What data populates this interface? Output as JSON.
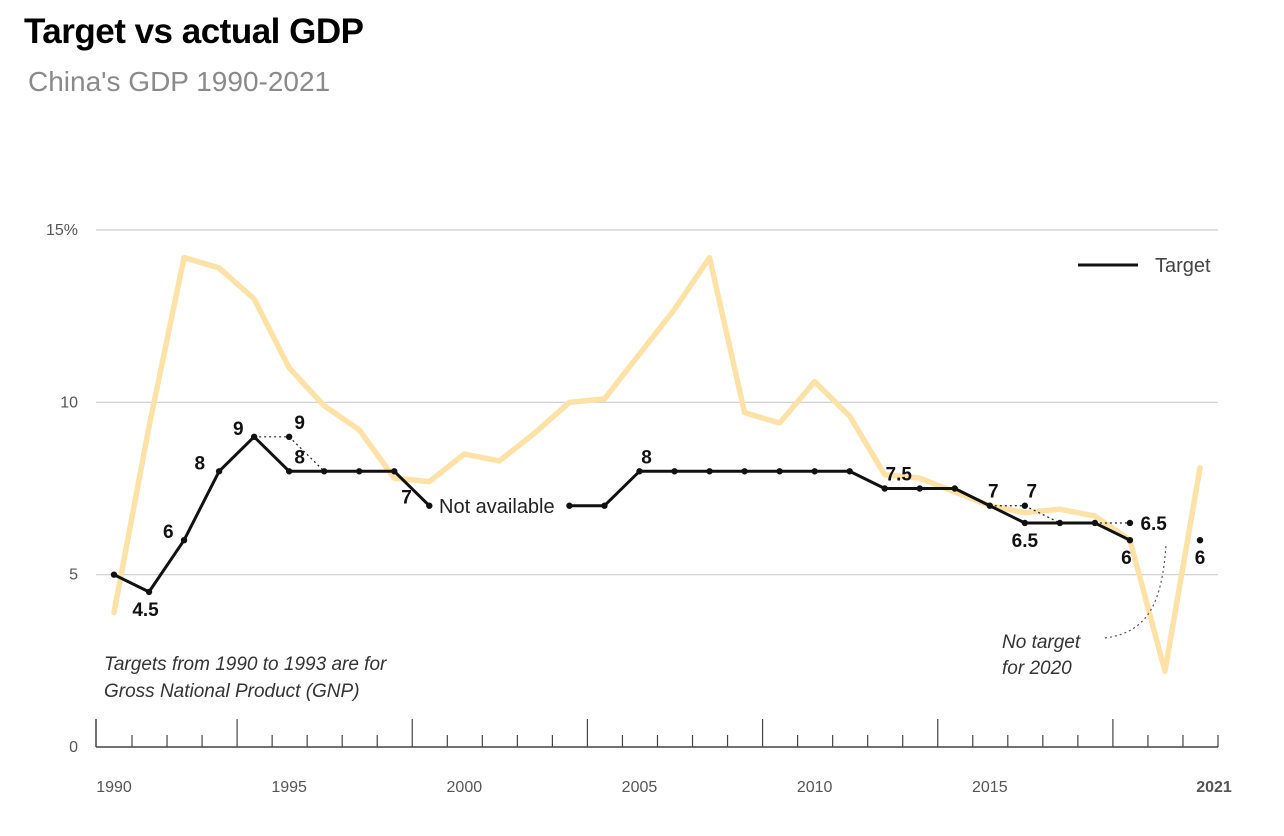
{
  "title": "Target vs actual GDP",
  "subtitle": "China's GDP 1990-2021",
  "legend": {
    "label": "Target",
    "placement": "top-right"
  },
  "notes": {
    "gnp_line1": "Targets from 1990 to 1993 are for",
    "gnp_line2": "Gross National Product (GNP)",
    "not_available": "Not available",
    "no_target_line1": "No target",
    "no_target_line2": "for 2020"
  },
  "colors": {
    "actual": "#fde2a8",
    "target": "#111111",
    "grid": "#cccccc",
    "axis": "#444444"
  },
  "chart_data": {
    "type": "line",
    "title": "Target vs actual GDP",
    "subtitle": "China's GDP 1990-2021",
    "ylim": [
      0,
      15
    ],
    "yticks": [
      0,
      5,
      10,
      15
    ],
    "ytick_labels": [
      "0",
      "5",
      "10",
      "15%"
    ],
    "xlim": [
      1990,
      2021
    ],
    "xticks": [
      1990,
      1995,
      2000,
      2005,
      2010,
      2015,
      2021
    ],
    "xtick_labels": [
      "1990",
      "1995",
      "2000",
      "2005",
      "2010",
      "2015",
      "2021"
    ],
    "grid": true,
    "series": [
      {
        "name": "",
        "color": "#fde2a8",
        "x": [
          1990,
          1991,
          1992,
          1993,
          1994,
          1995,
          1996,
          1997,
          1998,
          1999,
          2000,
          2001,
          2002,
          2003,
          2004,
          2005,
          2006,
          2007,
          2008,
          2009,
          2010,
          2011,
          2012,
          2013,
          2014,
          2015,
          2016,
          2017,
          2018,
          2019,
          2020,
          2021
        ],
        "y": [
          3.9,
          9.3,
          14.2,
          13.9,
          13.0,
          11.0,
          9.9,
          9.2,
          7.8,
          7.7,
          8.5,
          8.3,
          9.1,
          10.0,
          10.1,
          11.4,
          12.7,
          14.2,
          9.7,
          9.4,
          10.6,
          9.6,
          7.9,
          7.8,
          7.4,
          7.0,
          6.8,
          6.9,
          6.7,
          6.0,
          2.2,
          8.1
        ]
      },
      {
        "name": "Target",
        "color": "#111111",
        "segments": [
          [
            [
              1990,
              5
            ],
            [
              1991,
              4.5
            ],
            [
              1992,
              6
            ],
            [
              1993,
              8
            ],
            [
              1994,
              9
            ],
            [
              1995,
              8
            ],
            [
              1996,
              8
            ],
            [
              1997,
              8
            ],
            [
              1998,
              8
            ],
            [
              1999,
              7
            ]
          ],
          [
            [
              2003,
              7
            ],
            [
              2004,
              7
            ],
            [
              2005,
              8
            ],
            [
              2006,
              8
            ],
            [
              2007,
              8
            ],
            [
              2008,
              8
            ],
            [
              2009,
              8
            ],
            [
              2010,
              8
            ],
            [
              2011,
              8
            ],
            [
              2012,
              7.5
            ],
            [
              2013,
              7.5
            ],
            [
              2014,
              7.5
            ],
            [
              2015,
              7
            ],
            [
              2016,
              6.5
            ],
            [
              2017,
              6.5
            ],
            [
              2018,
              6.5
            ],
            [
              2019,
              6
            ]
          ]
        ],
        "extra_points": [
          [
            2021,
            6
          ]
        ],
        "alternate_ranges": [
          [
            [
              1994,
              9
            ],
            [
              1995,
              9
            ],
            [
              1996,
              8
            ]
          ],
          [
            [
              2015,
              7
            ],
            [
              2016,
              7
            ],
            [
              2017,
              6.5
            ]
          ],
          [
            [
              2018,
              6.5
            ],
            [
              2019,
              6.5
            ]
          ]
        ],
        "alternate_points": [
          [
            1995,
            9
          ],
          [
            2016,
            7
          ],
          [
            2019,
            6.5
          ]
        ]
      }
    ],
    "data_labels": [
      {
        "x": 1990.9,
        "y": 4.5,
        "text": "4.5",
        "pos": "below"
      },
      {
        "x": 1991.7,
        "y": 6,
        "text": "6",
        "pos": "left"
      },
      {
        "x": 1992.6,
        "y": 8,
        "text": "8",
        "pos": "left"
      },
      {
        "x": 1993.7,
        "y": 9,
        "text": "9",
        "pos": "left"
      },
      {
        "x": 1995.3,
        "y": 9,
        "text": "9",
        "pos": "above"
      },
      {
        "x": 1995.3,
        "y": 8,
        "text": "8",
        "pos": "above"
      },
      {
        "x": 1998.5,
        "y": 7,
        "text": "7",
        "pos": "left"
      },
      {
        "x": 2005.2,
        "y": 8,
        "text": "8",
        "pos": "above"
      },
      {
        "x": 2012.4,
        "y": 7.5,
        "text": "7.5",
        "pos": "above"
      },
      {
        "x": 2015.1,
        "y": 7,
        "text": "7",
        "pos": "above"
      },
      {
        "x": 2016.2,
        "y": 7,
        "text": "7",
        "pos": "above"
      },
      {
        "x": 2016.0,
        "y": 6.5,
        "text": "6.5",
        "pos": "below"
      },
      {
        "x": 2019.3,
        "y": 6.5,
        "text": "6.5",
        "pos": "right"
      },
      {
        "x": 2018.9,
        "y": 6,
        "text": "6",
        "pos": "below"
      },
      {
        "x": 2021.0,
        "y": 6,
        "text": "6",
        "pos": "below"
      }
    ]
  }
}
